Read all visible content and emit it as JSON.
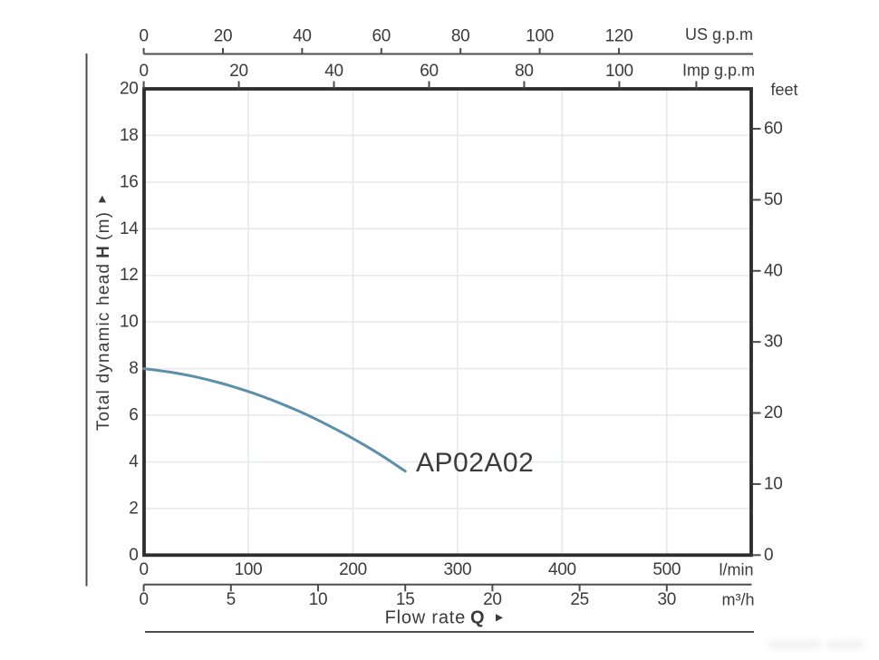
{
  "chart_data": {
    "type": "line",
    "description": "Pump performance curve: total dynamic head versus flow rate",
    "curve": {
      "label": "AP02A02",
      "color": "#5e8fa8",
      "points_lmin_m": [
        [
          0,
          8.0
        ],
        [
          25,
          7.85
        ],
        [
          50,
          7.64
        ],
        [
          75,
          7.36
        ],
        [
          100,
          7.02
        ],
        [
          125,
          6.61
        ],
        [
          150,
          6.14
        ],
        [
          175,
          5.6
        ],
        [
          200,
          5.0
        ],
        [
          225,
          4.34
        ],
        [
          250,
          3.6
        ]
      ]
    },
    "axes": {
      "x_top_us": {
        "label": "US g.p.m",
        "ticks": [
          0,
          20,
          40,
          60,
          80,
          100,
          120
        ]
      },
      "x_top_imp": {
        "label": "Imp g.p.m",
        "ticks": [
          0,
          20,
          40,
          60,
          80,
          100
        ],
        "extra_unlabeled_tick": 116.2
      },
      "x_bottom_lmin": {
        "label": "l/min",
        "ticks": [
          0,
          100,
          200,
          300,
          400,
          500
        ],
        "range": [
          0,
          581
        ]
      },
      "x_bottom_m3h": {
        "label": "m³/h",
        "ticks": [
          0,
          5,
          10,
          15,
          20,
          25,
          30
        ]
      },
      "y_left": {
        "label_prefix": "Total dynamic head",
        "label_symbol": "H",
        "label_suffix": "(m)",
        "ticks": [
          0,
          2,
          4,
          6,
          8,
          10,
          12,
          14,
          16,
          18,
          20
        ],
        "range": [
          0,
          20
        ]
      },
      "y_right": {
        "label": "feet",
        "ticks": [
          0,
          10,
          20,
          30,
          40,
          50,
          60
        ]
      }
    },
    "x_title": {
      "prefix": "Flow rate",
      "symbol": "Q"
    },
    "grid": true,
    "colors": {
      "ink": "#3b3b3b",
      "frame": "#2e2c2c",
      "axis": "#4e4c4c",
      "grid": "#e6e8e9",
      "curve": "#5e8fa8",
      "background": "#ffffff"
    }
  }
}
